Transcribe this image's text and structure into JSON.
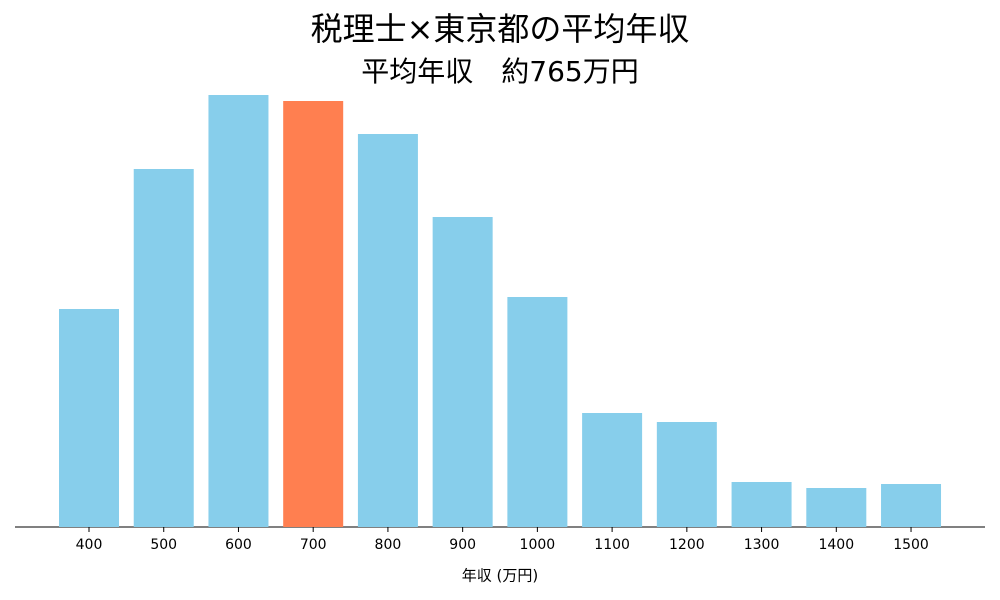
{
  "chart_data": {
    "type": "bar",
    "title": "税理士×東京都の平均年収",
    "subtitle": "平均年収　約765万円",
    "x_label": "年収 (万円)",
    "categories": [
      "400",
      "500",
      "600",
      "700",
      "800",
      "900",
      "1000",
      "1100",
      "1200",
      "1300",
      "1400",
      "1500"
    ],
    "values": [
      218,
      358,
      432,
      426,
      393,
      310,
      230,
      114,
      105,
      45,
      39,
      43
    ],
    "colors": [
      "#87ceeb",
      "#87ceeb",
      "#87ceeb",
      "#ff7f50",
      "#87ceeb",
      "#87ceeb",
      "#87ceeb",
      "#87ceeb",
      "#87ceeb",
      "#87ceeb",
      "#87ceeb",
      "#87ceeb"
    ],
    "ylim": [
      0,
      432
    ]
  }
}
